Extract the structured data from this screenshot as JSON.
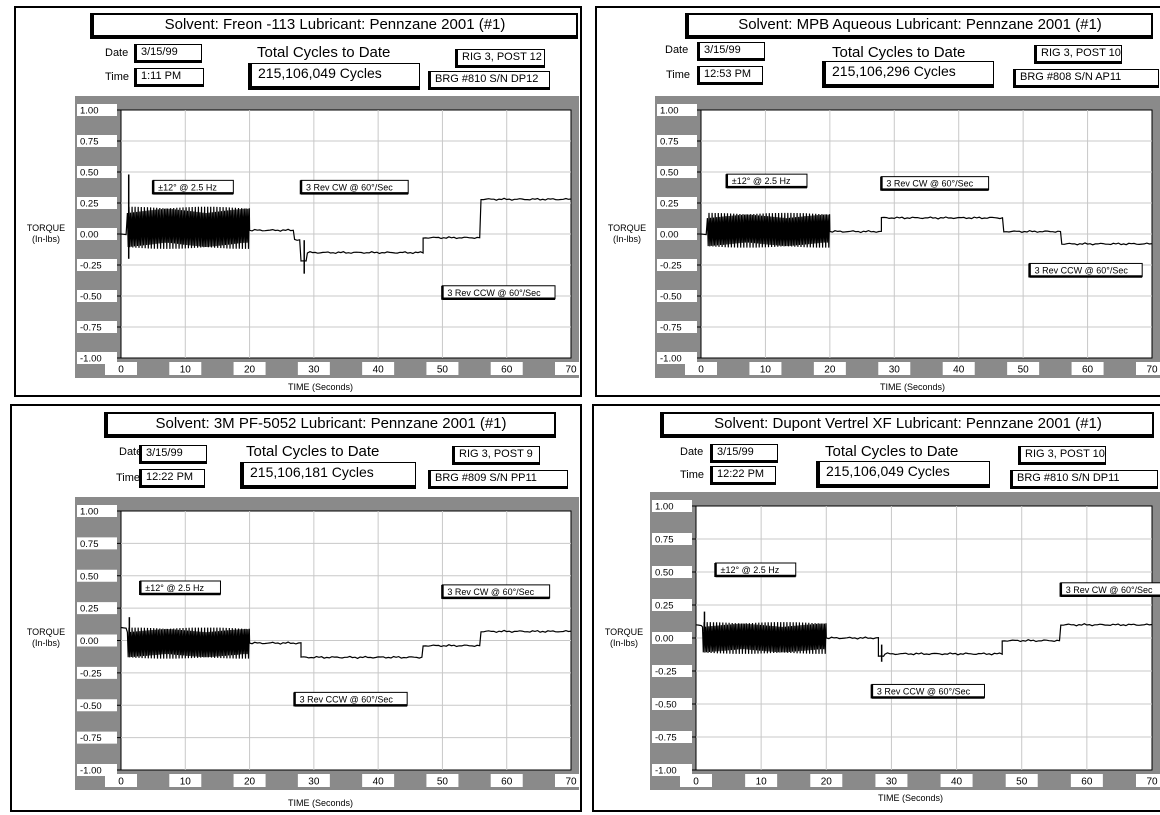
{
  "chart_data": [
    {
      "type": "line",
      "title": "Solvent: Freon -113   Lubricant: Pennzane 2001 (#1)",
      "date_label": "Date",
      "date": "3/15/99",
      "time_label": "Time",
      "time": "1:11 PM",
      "cycles_label": "Total Cycles to Date",
      "cycles": "215,106,049 Cycles",
      "rig": "RIG 3, POST 12",
      "bearing": "BRG #810  S/N  DP12",
      "ylabel": "TORQUE\n(In-lbs)",
      "xlabel": "TIME (Seconds)",
      "xlim": [
        0,
        70
      ],
      "ylim": [
        -1.0,
        1.0
      ],
      "xticks": [
        "0",
        "10",
        "20",
        "30",
        "40",
        "50",
        "60",
        "70"
      ],
      "yticks": [
        "1.00",
        "0.75",
        "0.50",
        "0.25",
        "0.00",
        "-0.25",
        "-0.50",
        "-0.75",
        "-1.00"
      ],
      "grid": true,
      "series": [
        {
          "segments": [
            {
              "type": "flat",
              "x": [
                0,
                1
              ],
              "y": 0.0
            },
            {
              "type": "osc",
              "x": [
                1,
                20
              ],
              "center": 0.05,
              "amp": 0.17
            },
            {
              "type": "flat",
              "x": [
                20,
                27
              ],
              "y": 0.03
            },
            {
              "type": "flat",
              "x": [
                27,
                28
              ],
              "y": -0.05
            },
            {
              "type": "flat",
              "x": [
                28,
                29
              ],
              "y": -0.22
            },
            {
              "type": "flat",
              "x": [
                29,
                47
              ],
              "y": -0.15
            },
            {
              "type": "flat",
              "x": [
                47,
                56
              ],
              "y": -0.03
            },
            {
              "type": "flat",
              "x": [
                56,
                70
              ],
              "y": 0.28
            }
          ],
          "spikes": [
            {
              "x": 1.2,
              "y1": -0.2,
              "y2": 0.48
            },
            {
              "x": 28.5,
              "y1": -0.05,
              "y2": -0.32
            }
          ]
        }
      ],
      "annotations": [
        {
          "text": "±12° @ 2.5 Hz",
          "x": 5,
          "y": 0.36
        },
        {
          "text": "3 Rev CW @ 60°/Sec",
          "x": 28,
          "y": 0.36
        },
        {
          "text": "3 Rev CCW @ 60°/Sec",
          "x": 50,
          "y": -0.49
        }
      ]
    },
    {
      "type": "line",
      "title": "Solvent: MPB Aqueous   Lubricant: Pennzane 2001 (#1)",
      "date_label": "Date",
      "date": "3/15/99",
      "time_label": "Time",
      "time": "12:53 PM",
      "cycles_label": "Total Cycles to Date",
      "cycles": "215,106,296 Cycles",
      "rig": "RIG 3, POST 10",
      "bearing": "BRG #808  S/N  AP11",
      "ylabel": "TORQUE\n(In-lbs)",
      "xlabel": "TIME (Seconds)",
      "xlim": [
        0,
        70
      ],
      "ylim": [
        -1.0,
        1.0
      ],
      "xticks": [
        "0",
        "10",
        "20",
        "30",
        "40",
        "50",
        "60",
        "70"
      ],
      "yticks": [
        "1.00",
        "0.75",
        "0.50",
        "0.25",
        "0.00",
        "-0.25",
        "-0.50",
        "-0.75",
        "-1.00"
      ],
      "grid": true,
      "series": [
        {
          "segments": [
            {
              "type": "flat",
              "x": [
                0,
                1
              ],
              "y": 0.0
            },
            {
              "type": "osc",
              "x": [
                1,
                20
              ],
              "center": 0.03,
              "amp": 0.14
            },
            {
              "type": "flat",
              "x": [
                20,
                28
              ],
              "y": 0.02
            },
            {
              "type": "flat",
              "x": [
                28,
                47
              ],
              "y": 0.13
            },
            {
              "type": "flat",
              "x": [
                47,
                56
              ],
              "y": 0.02
            },
            {
              "type": "flat",
              "x": [
                56,
                70
              ],
              "y": -0.08
            }
          ],
          "spikes": []
        }
      ],
      "annotations": [
        {
          "text": "±12° @ 2.5 Hz",
          "x": 4,
          "y": 0.41
        },
        {
          "text": "3 Rev CW @ 60°/Sec",
          "x": 28,
          "y": 0.39
        },
        {
          "text": "3 Rev CCW @ 60°/Sec",
          "x": 51,
          "y": -0.31
        }
      ]
    },
    {
      "type": "line",
      "title": "Solvent: 3M PF-5052   Lubricant: Pennzane 2001 (#1)",
      "date_label": "Date",
      "date": "3/15/99",
      "time_label": "Time",
      "time": "12:22 PM",
      "cycles_label": "Total Cycles to Date",
      "cycles": "215,106,181 Cycles",
      "rig": "RIG 3, POST 9",
      "bearing": "BRG #809  S/N  PP11",
      "ylabel": "TORQUE\n(In-lbs)",
      "xlabel": "TIME (Seconds)",
      "xlim": [
        0,
        70
      ],
      "ylim": [
        -1.0,
        1.0
      ],
      "xticks": [
        "0",
        "10",
        "20",
        "30",
        "40",
        "50",
        "60",
        "70"
      ],
      "yticks": [
        "1.00",
        "0.75",
        "0.50",
        "0.25",
        "0.00",
        "-0.25",
        "-0.50",
        "-0.75",
        "-1.00"
      ],
      "grid": true,
      "series": [
        {
          "segments": [
            {
              "type": "flat",
              "x": [
                0,
                1
              ],
              "y": 0.1
            },
            {
              "type": "osc",
              "x": [
                1,
                20
              ],
              "center": -0.02,
              "amp": 0.12
            },
            {
              "type": "flat",
              "x": [
                20,
                28
              ],
              "y": -0.02
            },
            {
              "type": "flat",
              "x": [
                28,
                47
              ],
              "y": -0.13
            },
            {
              "type": "flat",
              "x": [
                47,
                56
              ],
              "y": -0.04
            },
            {
              "type": "flat",
              "x": [
                56,
                70
              ],
              "y": 0.07
            }
          ],
          "spikes": [
            {
              "x": 1.3,
              "y1": 0.0,
              "y2": 0.18
            }
          ]
        }
      ],
      "annotations": [
        {
          "text": "±12° @ 2.5 Hz",
          "x": 3,
          "y": 0.39
        },
        {
          "text": "3 Rev CW @ 60°/Sec",
          "x": 50,
          "y": 0.36
        },
        {
          "text": "3 Rev CCW @ 60°/Sec",
          "x": 27,
          "y": -0.47
        }
      ]
    },
    {
      "type": "line",
      "title": "Solvent: Dupont Vertrel XF   Lubricant: Pennzane 2001 (#1)",
      "date_label": "Date",
      "date": "3/15/99",
      "time_label": "Time",
      "time": "12:22 PM",
      "cycles_label": "Total Cycles to Date",
      "cycles": "215,106,049 Cycles",
      "rig": "RIG 3, POST 10",
      "bearing": "BRG #810  S/N  DP11",
      "ylabel": "TORQUE\n(In-lbs)",
      "xlabel": "TIME (Seconds)",
      "xlim": [
        0,
        70
      ],
      "ylim": [
        -1.0,
        1.0
      ],
      "xticks": [
        "0",
        "10",
        "20",
        "30",
        "40",
        "50",
        "60",
        "70"
      ],
      "yticks": [
        "1.00",
        "0.75",
        "0.50",
        "0.25",
        "0.00",
        "-0.25",
        "-0.50",
        "-0.75",
        "-1.00"
      ],
      "grid": true,
      "series": [
        {
          "segments": [
            {
              "type": "flat",
              "x": [
                0,
                1
              ],
              "y": 0.1
            },
            {
              "type": "osc",
              "x": [
                1,
                20
              ],
              "center": 0.0,
              "amp": 0.12
            },
            {
              "type": "flat",
              "x": [
                20,
                28
              ],
              "y": 0.0
            },
            {
              "type": "flat",
              "x": [
                28,
                29
              ],
              "y": -0.14
            },
            {
              "type": "flat",
              "x": [
                29,
                47
              ],
              "y": -0.12
            },
            {
              "type": "flat",
              "x": [
                47,
                56
              ],
              "y": -0.02
            },
            {
              "type": "flat",
              "x": [
                56,
                70
              ],
              "y": 0.1
            }
          ],
          "spikes": [
            {
              "x": 1.3,
              "y1": 0.0,
              "y2": 0.2
            },
            {
              "x": 28.5,
              "y1": -0.05,
              "y2": -0.18
            }
          ]
        }
      ],
      "annotations": [
        {
          "text": "±12° @ 2.5 Hz",
          "x": 3,
          "y": 0.5
        },
        {
          "text": "3 Rev CW @ 60°/Sec",
          "x": 56,
          "y": 0.35
        },
        {
          "text": "3 Rev CCW @ 60°/Sec",
          "x": 27,
          "y": -0.42
        }
      ]
    }
  ]
}
